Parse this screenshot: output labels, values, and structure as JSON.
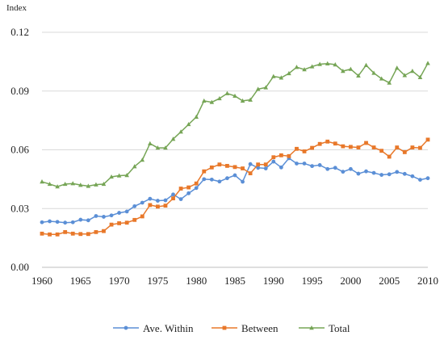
{
  "chart_data": {
    "type": "line",
    "ylabel": "Index",
    "xlabel": "",
    "xlim": [
      1960,
      2010
    ],
    "ylim": [
      0,
      0.12
    ],
    "x_ticks": [
      "1960",
      "1965",
      "1970",
      "1975",
      "1980",
      "1985",
      "1990",
      "1995",
      "2000",
      "2005",
      "2010"
    ],
    "y_ticks": [
      "0.00",
      "0.03",
      "0.06",
      "0.09",
      "0.12"
    ],
    "grid": "horizontal",
    "legend_position": "bottom",
    "x": [
      1960,
      1961,
      1962,
      1963,
      1964,
      1965,
      1966,
      1967,
      1968,
      1969,
      1970,
      1971,
      1972,
      1973,
      1974,
      1975,
      1976,
      1977,
      1978,
      1979,
      1980,
      1981,
      1982,
      1983,
      1984,
      1985,
      1986,
      1987,
      1988,
      1989,
      1990,
      1991,
      1992,
      1993,
      1994,
      1995,
      1996,
      1997,
      1998,
      1999,
      2000,
      2001,
      2002,
      2003,
      2004,
      2005,
      2006,
      2007,
      2008,
      2009,
      2010
    ],
    "series": [
      {
        "name": "Ave. Within",
        "color": "#5b8fd6",
        "marker": "circle",
        "values": [
          0.023,
          0.0235,
          0.0232,
          0.0228,
          0.023,
          0.0243,
          0.024,
          0.0262,
          0.0258,
          0.0265,
          0.0278,
          0.0285,
          0.0312,
          0.033,
          0.035,
          0.034,
          0.0342,
          0.0372,
          0.0348,
          0.0378,
          0.0405,
          0.045,
          0.0448,
          0.0438,
          0.0455,
          0.047,
          0.0437,
          0.0527,
          0.0508,
          0.0505,
          0.054,
          0.051,
          0.0557,
          0.053,
          0.053,
          0.0517,
          0.0522,
          0.0502,
          0.0508,
          0.0488,
          0.0502,
          0.0478,
          0.049,
          0.0482,
          0.0472,
          0.0475,
          0.0487,
          0.0477,
          0.0465,
          0.0447,
          0.0455
        ]
      },
      {
        "name": "Between",
        "color": "#e8782a",
        "marker": "square",
        "values": [
          0.0172,
          0.0168,
          0.0168,
          0.018,
          0.0172,
          0.017,
          0.017,
          0.018,
          0.0185,
          0.0218,
          0.0225,
          0.0228,
          0.0242,
          0.026,
          0.0318,
          0.031,
          0.0315,
          0.0352,
          0.0402,
          0.0408,
          0.0428,
          0.049,
          0.051,
          0.0525,
          0.0518,
          0.0512,
          0.0505,
          0.048,
          0.0525,
          0.0525,
          0.0562,
          0.0572,
          0.0568,
          0.0605,
          0.0592,
          0.061,
          0.063,
          0.0642,
          0.0632,
          0.0618,
          0.0615,
          0.0612,
          0.0635,
          0.0612,
          0.0595,
          0.0565,
          0.0612,
          0.0588,
          0.0612,
          0.061,
          0.0652
        ]
      },
      {
        "name": "Total",
        "color": "#76a556",
        "marker": "triangle",
        "values": [
          0.0437,
          0.0425,
          0.0412,
          0.0425,
          0.0428,
          0.042,
          0.0415,
          0.0422,
          0.0425,
          0.0462,
          0.0468,
          0.047,
          0.0515,
          0.0548,
          0.0632,
          0.061,
          0.061,
          0.0655,
          0.0692,
          0.073,
          0.0768,
          0.085,
          0.0843,
          0.0862,
          0.0888,
          0.0875,
          0.085,
          0.0855,
          0.091,
          0.0918,
          0.0975,
          0.0968,
          0.099,
          0.1022,
          0.101,
          0.1025,
          0.1037,
          0.104,
          0.1035,
          0.1002,
          0.1012,
          0.0978,
          0.1032,
          0.0992,
          0.0963,
          0.0942,
          0.1018,
          0.098,
          0.1002,
          0.097,
          0.1042
        ]
      }
    ]
  }
}
